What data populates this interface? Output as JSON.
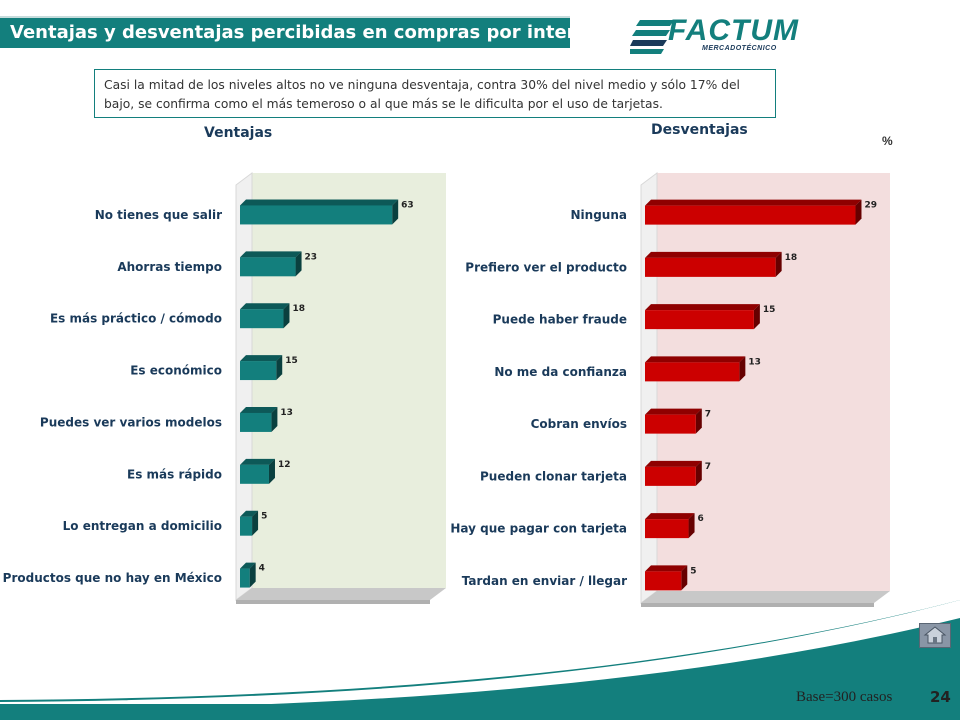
{
  "header": {
    "title": "Ventajas y desventajas percibidas en compras por internet",
    "logo_text": "FACTUM",
    "logo_subtext": "MERCADOTÉCNICO"
  },
  "note": "Casi la mitad de los niveles altos no ve ninguna desventaja, contra 30% del nivel medio y sólo 17% del bajo, se confirma como el más temeroso o al que más se le dificulta por el uso de tarjetas.",
  "unit_label": "%",
  "footer": {
    "base": "Base=300 casos",
    "page": "24"
  },
  "colors": {
    "teal": "#137f7d",
    "red": "#cc0000",
    "left_panel_bg": "#e8eedd",
    "right_panel_bg": "#f3dede"
  },
  "icons": {
    "home": "home-icon"
  },
  "chart_data": [
    {
      "type": "bar",
      "orientation": "horizontal",
      "title": "Ventajas",
      "categories": [
        "No tienes que salir",
        "Ahorras tiempo",
        "Es más práctico / cómodo",
        "Es económico",
        "Puedes ver varios modelos",
        "Es más rápido",
        "Lo entregan a domicilio",
        "Productos que no hay en México"
      ],
      "values": [
        63,
        23,
        18,
        15,
        13,
        12,
        5,
        4
      ],
      "color": "#137f7d",
      "xlim": [
        0,
        77
      ]
    },
    {
      "type": "bar",
      "orientation": "horizontal",
      "title": "Desventajas",
      "categories": [
        "Ninguna",
        "Prefiero ver el producto",
        "Puede haber fraude",
        "No me da confianza",
        "Cobran envíos",
        "Pueden clonar tarjeta",
        "Hay que pagar con tarjeta",
        "Tardan en enviar / llegar"
      ],
      "values": [
        29,
        18,
        15,
        13,
        7,
        7,
        6,
        5
      ],
      "color": "#cc0000",
      "xlim": [
        0,
        31
      ]
    }
  ]
}
